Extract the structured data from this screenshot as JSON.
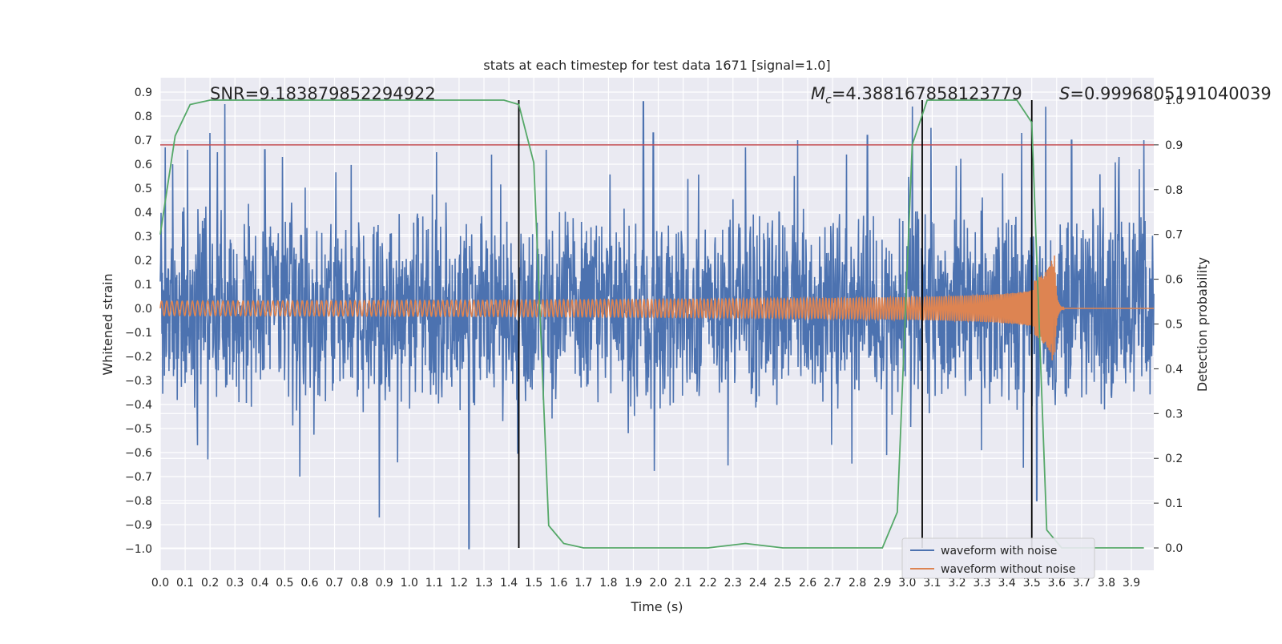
{
  "chart_data": {
    "type": "line",
    "title": "stats at each timestep for test data 1671 [signal=1.0]",
    "xlabel": "Time (s)",
    "ylabel": "Whitened strain",
    "y2label": "Detection probability",
    "xlim": [
      0.0,
      3.99
    ],
    "ylim": [
      -1.09,
      0.96
    ],
    "y2lim": [
      -0.05,
      1.05
    ],
    "x_ticks": [
      "0.0",
      "0.1",
      "0.2",
      "0.3",
      "0.4",
      "0.5",
      "0.6",
      "0.7",
      "0.8",
      "0.9",
      "1.0",
      "1.1",
      "1.2",
      "1.3",
      "1.4",
      "1.5",
      "1.6",
      "1.7",
      "1.8",
      "1.9",
      "2.0",
      "2.1",
      "2.2",
      "2.3",
      "2.4",
      "2.5",
      "2.6",
      "2.7",
      "2.8",
      "2.9",
      "3.0",
      "3.1",
      "3.2",
      "3.3",
      "3.4",
      "3.5",
      "3.6",
      "3.7",
      "3.8",
      "3.9"
    ],
    "y_ticks": [
      "0.9",
      "0.8",
      "0.7",
      "0.6",
      "0.5",
      "0.4",
      "0.3",
      "0.2",
      "0.1",
      "0.0",
      "−0.1",
      "−0.2",
      "−0.3",
      "−0.4",
      "−0.5",
      "−0.6",
      "−0.7",
      "−0.8",
      "−0.9",
      "−1.0"
    ],
    "y2_ticks": [
      "1.0",
      "0.9",
      "0.8",
      "0.7",
      "0.6",
      "0.5",
      "0.4",
      "0.3",
      "0.2",
      "0.1",
      "0.0"
    ],
    "annotations": {
      "snr": "SNR=9.183879852294922",
      "mc_symbol": "M",
      "mc_sub": "c",
      "mc_value": "=4.388167858123779",
      "s_symbol": "S",
      "s_value": "=0.9996805191040039"
    },
    "threshold": 0.9,
    "threshold_color": "#c44e52",
    "vertical_lines_x": [
      1.44,
      3.06,
      3.5
    ],
    "legend": {
      "placement": "lower-right",
      "entries": [
        "waveform with noise",
        "waveform without noise"
      ]
    },
    "colors": {
      "noise": "#4c72b0",
      "clean": "#dd8452",
      "prob": "#55a868",
      "background": "#eaeaf2",
      "grid": "#ffffff"
    },
    "series": [
      {
        "name": "waveform with noise",
        "note_envelope": "dense noisy strain, roughly within -1.0 to 0.86",
        "approx_peaks_x": [
          0.02,
          0.05,
          0.11,
          0.2,
          0.23,
          0.26,
          0.42,
          0.49,
          0.56,
          0.88,
          1.11,
          1.24,
          1.33,
          1.55,
          1.94,
          1.98,
          2.35,
          2.56,
          2.84,
          3.02,
          3.46,
          3.52,
          3.66,
          3.85,
          3.95
        ],
        "approx_peaks_y": [
          0.67,
          0.6,
          0.66,
          0.73,
          0.65,
          0.85,
          0.66,
          0.63,
          -0.7,
          -0.87,
          0.65,
          -1.0,
          0.64,
          0.66,
          0.86,
          0.73,
          0.67,
          0.7,
          0.72,
          0.84,
          0.73,
          -0.8,
          0.7,
          0.63,
          0.7
        ]
      },
      {
        "name": "waveform without noise",
        "note_shape": "chirp; amplitude grows ~0.03 to ~0.25 with rising frequency, merger near 3.59 s, zero afterward",
        "merger_time": 3.59,
        "amplitude_start": 0.03,
        "amplitude_peak": 0.25
      },
      {
        "name": "detection probability (right axis)",
        "x": [
          0.0,
          0.06,
          0.12,
          0.2,
          0.4,
          0.6,
          0.8,
          1.0,
          1.2,
          1.38,
          1.44,
          1.5,
          1.56,
          1.62,
          1.7,
          1.8,
          2.0,
          2.2,
          2.35,
          2.5,
          2.7,
          2.9,
          2.96,
          3.02,
          3.08,
          3.14,
          3.2,
          3.3,
          3.44,
          3.5,
          3.56,
          3.62,
          3.7,
          3.9,
          3.95
        ],
        "y": [
          0.7,
          0.92,
          0.99,
          1.0,
          1.0,
          1.0,
          1.0,
          1.0,
          1.0,
          1.0,
          0.99,
          0.86,
          0.05,
          0.01,
          0.0,
          0.0,
          0.0,
          0.0,
          0.01,
          0.0,
          0.0,
          0.0,
          0.08,
          0.9,
          1.0,
          1.0,
          1.0,
          1.0,
          1.0,
          0.95,
          0.04,
          0.0,
          0.0,
          0.0,
          0.0
        ]
      }
    ]
  }
}
